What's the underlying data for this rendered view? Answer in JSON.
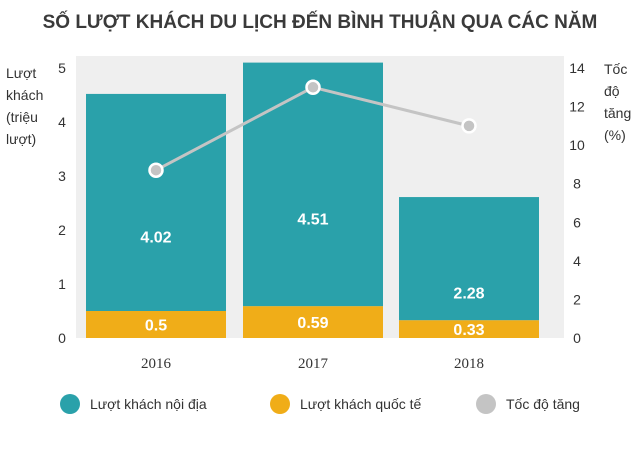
{
  "title": "SỐ LƯỢT KHÁCH DU LỊCH ĐẾN BÌNH THUẬN QUA CÁC NĂM",
  "y_left_title_lines": [
    "Lượt",
    "khách",
    "(triệu",
    "lượt)"
  ],
  "y_right_title_lines": [
    "Tốc",
    "độ",
    "tăng",
    "(%)"
  ],
  "colors": {
    "domestic": "#2aa1aa",
    "international": "#f0ad18",
    "growth": "#c4c4c4",
    "band": "#efefef",
    "grid": "#d9d9d9"
  },
  "chart_data": {
    "type": "bar",
    "stacked": true,
    "categories": [
      "2016",
      "2017",
      "2018"
    ],
    "series": [
      {
        "name": "Lượt khách nội địa",
        "values": [
          4.02,
          4.51,
          2.28
        ],
        "labels": [
          "4.02",
          "4.51",
          "2.28"
        ]
      },
      {
        "name": "Lượt khách quốc tế",
        "values": [
          0.5,
          0.59,
          0.33
        ],
        "labels": [
          "0.5",
          "0.59",
          "0.33"
        ]
      }
    ],
    "line_series": {
      "name": "Tốc độ tăng",
      "values": [
        8.7,
        13.0,
        11.0
      ],
      "axis": "right"
    },
    "y_left": {
      "min": 0,
      "max": 5,
      "ticks": [
        "0",
        "1",
        "2",
        "3",
        "4",
        "5"
      ]
    },
    "y_right": {
      "min": 0,
      "max": 14,
      "ticks": [
        "0",
        "2",
        "4",
        "6",
        "8",
        "10",
        "12",
        "14"
      ]
    },
    "grid": false,
    "legend_position": "bottom"
  }
}
